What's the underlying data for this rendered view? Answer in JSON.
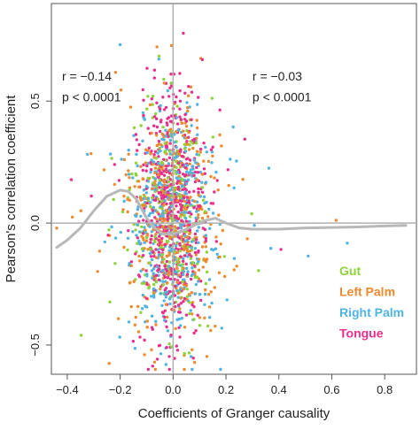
{
  "chart_data": {
    "type": "scatter",
    "xlabel": "Coefficients of Granger causality",
    "ylabel": "Pearson's correlation coefficient",
    "xlim": [
      -0.46,
      0.92
    ],
    "ylim": [
      -0.62,
      0.9
    ],
    "x_ticks": [
      -0.4,
      -0.2,
      0.0,
      0.2,
      0.4,
      0.6,
      0.8
    ],
    "x_tick_labels": [
      "−0.4",
      "−0.2",
      "0.0",
      "0.2",
      "0.4",
      "0.6",
      "0.8"
    ],
    "y_ticks": [
      -0.5,
      0.0,
      0.5
    ],
    "y_tick_labels": [
      "−0.5",
      "0.0",
      "0.5"
    ],
    "reference_lines": {
      "x": 0,
      "y": 0
    },
    "annotations": [
      {
        "name": "r-left",
        "text": "r = −0.14",
        "x": -0.42,
        "y": 0.585
      },
      {
        "name": "p-left",
        "text": "p < 0.0001",
        "x": -0.42,
        "y": 0.5
      },
      {
        "name": "r-right",
        "text": "r = −0.03",
        "x": 0.3,
        "y": 0.585
      },
      {
        "name": "p-right",
        "text": "p < 0.0001",
        "x": 0.3,
        "y": 0.5
      }
    ],
    "legend": {
      "placement": "bottom-right",
      "items": [
        {
          "label": "Gut",
          "color": "#8cd43a"
        },
        {
          "label": "Left Palm",
          "color": "#f08a2e"
        },
        {
          "label": "Right Palm",
          "color": "#4fb4e4"
        },
        {
          "label": "Tongue",
          "color": "#ea2f8d"
        }
      ]
    },
    "series": [
      {
        "label": "Gut",
        "color": "#8cd43a",
        "n": 260,
        "x_mean": -0.02,
        "x_sd": 0.07,
        "y_mean": 0.0,
        "y_sd": 0.22
      },
      {
        "label": "Left Palm",
        "color": "#f08a2e",
        "n": 420,
        "x_mean": 0.0,
        "x_sd": 0.085,
        "y_mean": 0.0,
        "y_sd": 0.23
      },
      {
        "label": "Right Palm",
        "color": "#4fb4e4",
        "n": 420,
        "x_mean": 0.0,
        "x_sd": 0.085,
        "y_mean": 0.0,
        "y_sd": 0.23
      },
      {
        "label": "Tongue",
        "color": "#ea2f8d",
        "n": 520,
        "x_mean": -0.005,
        "x_sd": 0.06,
        "y_mean": 0.05,
        "y_sd": 0.25
      }
    ],
    "trend_line": {
      "color": "#b8b8b8",
      "x": [
        -0.44,
        -0.4,
        -0.35,
        -0.3,
        -0.25,
        -0.2,
        -0.17,
        -0.14,
        -0.12,
        -0.1,
        -0.07,
        -0.04,
        0.0,
        0.04,
        0.08,
        0.12,
        0.16,
        0.2,
        0.25,
        0.3,
        0.35,
        0.4,
        0.5,
        0.6,
        0.7,
        0.8,
        0.88
      ],
      "y": [
        -0.1,
        -0.07,
        -0.02,
        0.05,
        0.11,
        0.135,
        0.13,
        0.1,
        0.06,
        0.02,
        -0.02,
        -0.045,
        -0.045,
        -0.03,
        -0.01,
        0.01,
        0.02,
        0.0,
        -0.02,
        -0.025,
        -0.025,
        -0.025,
        -0.02,
        -0.018,
        -0.016,
        -0.012,
        -0.01
      ]
    },
    "grid": false
  }
}
